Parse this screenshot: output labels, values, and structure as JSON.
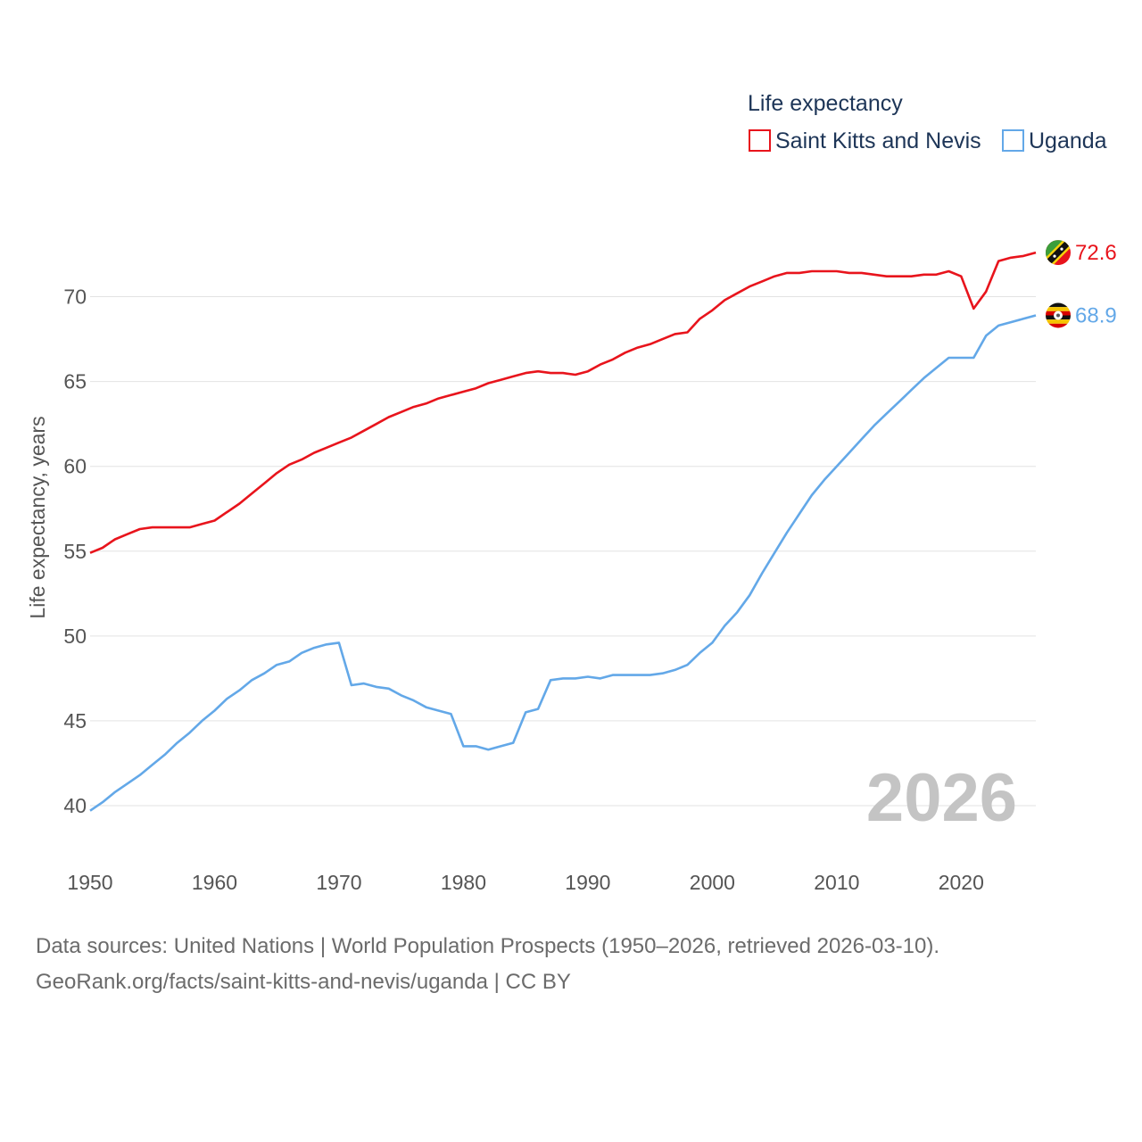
{
  "chart_data": {
    "type": "line",
    "legend_title": "Life expectancy",
    "ylabel": "Life expectancy, years",
    "xlim": [
      1950,
      2026
    ],
    "ylim": [
      38,
      73.5
    ],
    "x_ticks": [
      1950,
      1960,
      1970,
      1980,
      1990,
      2000,
      2010,
      2020
    ],
    "y_ticks": [
      40,
      45,
      50,
      55,
      60,
      65,
      70
    ],
    "year_label": "2026",
    "series": [
      {
        "name": "Saint Kitts and Nevis",
        "color": "#e8141c",
        "end_label": "72.6",
        "flag_icon": "saint-kitts-and-nevis-flag-icon",
        "x": [
          1950,
          1951,
          1952,
          1953,
          1954,
          1955,
          1956,
          1957,
          1958,
          1959,
          1960,
          1961,
          1962,
          1963,
          1964,
          1965,
          1966,
          1967,
          1968,
          1969,
          1970,
          1971,
          1972,
          1973,
          1974,
          1975,
          1976,
          1977,
          1978,
          1979,
          1980,
          1981,
          1982,
          1983,
          1984,
          1985,
          1986,
          1987,
          1988,
          1989,
          1990,
          1991,
          1992,
          1993,
          1994,
          1995,
          1996,
          1997,
          1998,
          1999,
          2000,
          2001,
          2002,
          2003,
          2004,
          2005,
          2006,
          2007,
          2008,
          2009,
          2010,
          2011,
          2012,
          2013,
          2014,
          2015,
          2016,
          2017,
          2018,
          2019,
          2020,
          2021,
          2022,
          2023,
          2024,
          2025,
          2026
        ],
        "values": [
          54.9,
          55.2,
          55.7,
          56.0,
          56.3,
          56.4,
          56.4,
          56.4,
          56.4,
          56.6,
          56.8,
          57.3,
          57.8,
          58.4,
          59.0,
          59.6,
          60.1,
          60.4,
          60.8,
          61.1,
          61.4,
          61.7,
          62.1,
          62.5,
          62.9,
          63.2,
          63.5,
          63.7,
          64.0,
          64.2,
          64.4,
          64.6,
          64.9,
          65.1,
          65.3,
          65.5,
          65.6,
          65.5,
          65.5,
          65.4,
          65.6,
          66.0,
          66.3,
          66.7,
          67.0,
          67.2,
          67.5,
          67.8,
          67.9,
          68.7,
          69.2,
          69.8,
          70.2,
          70.6,
          70.9,
          71.2,
          71.4,
          71.4,
          71.5,
          71.5,
          71.5,
          71.4,
          71.4,
          71.3,
          71.2,
          71.2,
          71.2,
          71.3,
          71.3,
          71.5,
          71.2,
          69.3,
          70.3,
          72.1,
          72.3,
          72.4,
          72.6
        ]
      },
      {
        "name": "Uganda",
        "color": "#63a8e8",
        "end_label": "68.9",
        "flag_icon": "uganda-flag-icon",
        "x": [
          1950,
          1951,
          1952,
          1953,
          1954,
          1955,
          1956,
          1957,
          1958,
          1959,
          1960,
          1961,
          1962,
          1963,
          1964,
          1965,
          1966,
          1967,
          1968,
          1969,
          1970,
          1971,
          1972,
          1973,
          1974,
          1975,
          1976,
          1977,
          1978,
          1979,
          1980,
          1981,
          1982,
          1983,
          1984,
          1985,
          1986,
          1987,
          1988,
          1989,
          1990,
          1991,
          1992,
          1993,
          1994,
          1995,
          1996,
          1997,
          1998,
          1999,
          2000,
          2001,
          2002,
          2003,
          2004,
          2005,
          2006,
          2007,
          2008,
          2009,
          2010,
          2011,
          2012,
          2013,
          2014,
          2015,
          2016,
          2017,
          2018,
          2019,
          2020,
          2021,
          2022,
          2023,
          2024,
          2025,
          2026
        ],
        "values": [
          39.7,
          40.2,
          40.8,
          41.3,
          41.8,
          42.4,
          43.0,
          43.7,
          44.3,
          45.0,
          45.6,
          46.3,
          46.8,
          47.4,
          47.8,
          48.3,
          48.5,
          49.0,
          49.3,
          49.5,
          49.6,
          47.1,
          47.2,
          47.0,
          46.9,
          46.5,
          46.2,
          45.8,
          45.6,
          45.4,
          43.5,
          43.5,
          43.3,
          43.5,
          43.7,
          45.5,
          45.7,
          47.4,
          47.5,
          47.5,
          47.6,
          47.5,
          47.7,
          47.7,
          47.7,
          47.7,
          47.8,
          48.0,
          48.3,
          49.0,
          49.6,
          50.6,
          51.4,
          52.4,
          53.7,
          54.9,
          56.1,
          57.2,
          58.3,
          59.2,
          60.0,
          60.8,
          61.6,
          62.4,
          63.1,
          63.8,
          64.5,
          65.2,
          65.8,
          66.4,
          66.4,
          66.4,
          67.7,
          68.3,
          68.5,
          68.7,
          68.9
        ]
      }
    ]
  },
  "footer": {
    "line1": "Data sources: United Nations | World Population Prospects (1950–2026, retrieved 2026-03-10).",
    "line2": "GeoRank.org/facts/saint-kitts-and-nevis/uganda | CC BY"
  }
}
